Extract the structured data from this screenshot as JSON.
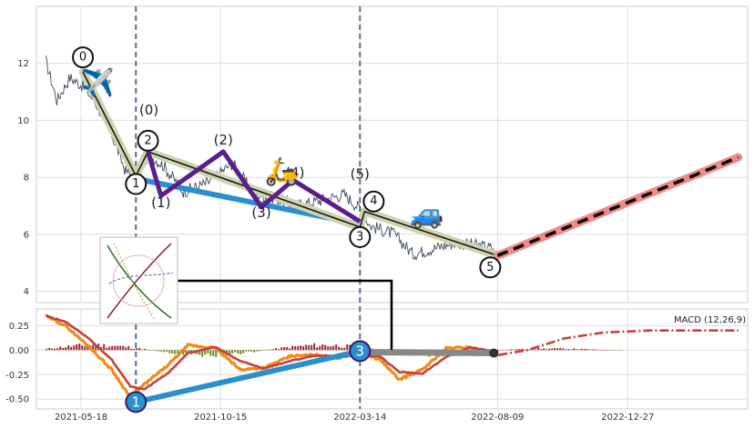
{
  "chart_data": [
    {
      "type": "line",
      "panel": "price",
      "title": "",
      "xlabel": "",
      "ylabel": "",
      "x_range": [
        "2021-03-31",
        "2023-05-05"
      ],
      "ylim": [
        3.6,
        14.0
      ],
      "grid": true,
      "y_ticks": [
        "4",
        "6",
        "8",
        "10",
        "12"
      ],
      "x_ticks": [
        "2021-05-18",
        "2021-10-15",
        "2022-03-14",
        "2022-08-09",
        "2022-12-27"
      ],
      "price_anchors": [
        {
          "x": "2021-04-10",
          "y": 12.1
        },
        {
          "x": "2021-04-22",
          "y": 10.7
        },
        {
          "x": "2021-05-06",
          "y": 11.5
        },
        {
          "x": "2021-05-20",
          "y": 11.2
        },
        {
          "x": "2021-06-03",
          "y": 10.6
        },
        {
          "x": "2021-06-20",
          "y": 9.5
        },
        {
          "x": "2021-07-05",
          "y": 8.2
        },
        {
          "x": "2021-07-16",
          "y": 8.0
        },
        {
          "x": "2021-07-30",
          "y": 8.8
        },
        {
          "x": "2021-08-15",
          "y": 8.4
        },
        {
          "x": "2021-09-05",
          "y": 7.5
        },
        {
          "x": "2021-10-01",
          "y": 7.8
        },
        {
          "x": "2021-10-28",
          "y": 8.5
        },
        {
          "x": "2021-11-20",
          "y": 7.4
        },
        {
          "x": "2021-12-10",
          "y": 7.3
        },
        {
          "x": "2022-01-05",
          "y": 7.0
        },
        {
          "x": "2022-02-01",
          "y": 7.2
        },
        {
          "x": "2022-02-25",
          "y": 7.4
        },
        {
          "x": "2022-03-14",
          "y": 6.9
        },
        {
          "x": "2022-03-25",
          "y": 6.3
        },
        {
          "x": "2022-04-20",
          "y": 6.0
        },
        {
          "x": "2022-05-10",
          "y": 5.3
        },
        {
          "x": "2022-06-01",
          "y": 5.5
        },
        {
          "x": "2022-06-25",
          "y": 5.7
        },
        {
          "x": "2022-07-20",
          "y": 5.6
        },
        {
          "x": "2022-08-05",
          "y": 5.5
        }
      ],
      "wave_points": [
        {
          "label": "0",
          "x": "2021-05-20",
          "y": 11.7
        },
        {
          "label": "1",
          "x": "2021-07-16",
          "y": 8.05
        },
        {
          "label": "2",
          "x": "2021-07-29",
          "y": 8.9
        },
        {
          "label": "3",
          "x": "2022-03-14",
          "y": 6.25
        },
        {
          "label": "4",
          "x": "2022-03-19",
          "y": 6.8
        },
        {
          "label": "5",
          "x": "2022-08-09",
          "y": 5.25
        }
      ],
      "sub_wave": [
        {
          "label": "(0)",
          "x": "2021-07-29",
          "y": 8.9,
          "text_x": "2021-07-30",
          "text_y": 10.2
        },
        {
          "label": "(1)",
          "x": "2021-08-12",
          "y": 7.35,
          "text_x": "2021-08-12",
          "text_y": 6.95
        },
        {
          "label": "(2)",
          "x": "2021-10-18",
          "y": 8.9,
          "text_x": "2021-10-18",
          "text_y": 9.15
        },
        {
          "label": "(3)",
          "x": "2021-11-28",
          "y": 6.95,
          "text_x": "2021-11-28",
          "text_y": 6.6
        },
        {
          "label": "(4)",
          "x": "2022-01-01",
          "y": 7.9,
          "text_x": "2022-01-03",
          "text_y": 8.0
        },
        {
          "label": "(5)",
          "x": "2022-03-14",
          "y": 6.45,
          "text_x": "2022-03-14",
          "text_y": 7.95
        }
      ],
      "channel_line": [
        {
          "x": "2021-07-16",
          "y": 7.95
        },
        {
          "x": "2022-03-14",
          "y": 6.35
        }
      ],
      "projection": [
        {
          "x": "2022-08-09",
          "y": 5.25
        },
        {
          "x": "2023-04-25",
          "y": 8.7
        }
      ],
      "vlines": [
        "2021-07-16",
        "2022-03-14"
      ],
      "icons": [
        {
          "name": "airplane",
          "emoji": "✈️",
          "x": "2021-06-05",
          "y": 11.3
        },
        {
          "name": "scooter",
          "emoji": "🛵",
          "x": "2021-12-20",
          "y": 8.2
        },
        {
          "name": "car",
          "emoji": "🚙",
          "x": "2022-05-25",
          "y": 6.7
        }
      ]
    },
    {
      "type": "line",
      "panel": "macd",
      "title": "",
      "legend": "MACD (12,26,9)",
      "ylim": [
        -0.6,
        0.42
      ],
      "grid": true,
      "y_ticks": [
        "0.25",
        "0.00",
        "-0.25",
        "-0.50"
      ],
      "macd_anchors": [
        {
          "x": "2021-04-10",
          "y": 0.35
        },
        {
          "x": "2021-05-01",
          "y": 0.25
        },
        {
          "x": "2021-05-25",
          "y": 0.05
        },
        {
          "x": "2021-06-20",
          "y": -0.2
        },
        {
          "x": "2021-07-10",
          "y": -0.48
        },
        {
          "x": "2021-07-25",
          "y": -0.35
        },
        {
          "x": "2021-08-20",
          "y": -0.15
        },
        {
          "x": "2021-09-10",
          "y": 0.05
        },
        {
          "x": "2021-10-10",
          "y": 0.02
        },
        {
          "x": "2021-11-05",
          "y": -0.2
        },
        {
          "x": "2021-12-01",
          "y": -0.18
        },
        {
          "x": "2021-12-30",
          "y": -0.06
        },
        {
          "x": "2022-01-25",
          "y": -0.05
        },
        {
          "x": "2022-02-20",
          "y": -0.08
        },
        {
          "x": "2022-03-14",
          "y": -0.02
        },
        {
          "x": "2022-04-05",
          "y": -0.1
        },
        {
          "x": "2022-04-25",
          "y": -0.3
        },
        {
          "x": "2022-05-20",
          "y": -0.2
        },
        {
          "x": "2022-06-15",
          "y": 0.02
        },
        {
          "x": "2022-07-10",
          "y": 0.03
        },
        {
          "x": "2022-08-10",
          "y": -0.05
        }
      ],
      "macd_projection": [
        {
          "x": "2022-08-10",
          "y": -0.05
        },
        {
          "x": "2022-09-10",
          "y": 0.0
        },
        {
          "x": "2022-10-20",
          "y": 0.12
        },
        {
          "x": "2022-12-01",
          "y": 0.18
        },
        {
          "x": "2023-01-20",
          "y": 0.2
        },
        {
          "x": "2023-04-25",
          "y": 0.2
        }
      ],
      "trend_line": [
        {
          "x": "2021-07-16",
          "y": -0.53,
          "label": "1"
        },
        {
          "x": "2022-03-14",
          "y": -0.01,
          "label": "3"
        }
      ],
      "flat_line": [
        {
          "x": "2022-03-14",
          "y": -0.02
        },
        {
          "x": "2022-08-05",
          "y": -0.03
        }
      ]
    }
  ]
}
